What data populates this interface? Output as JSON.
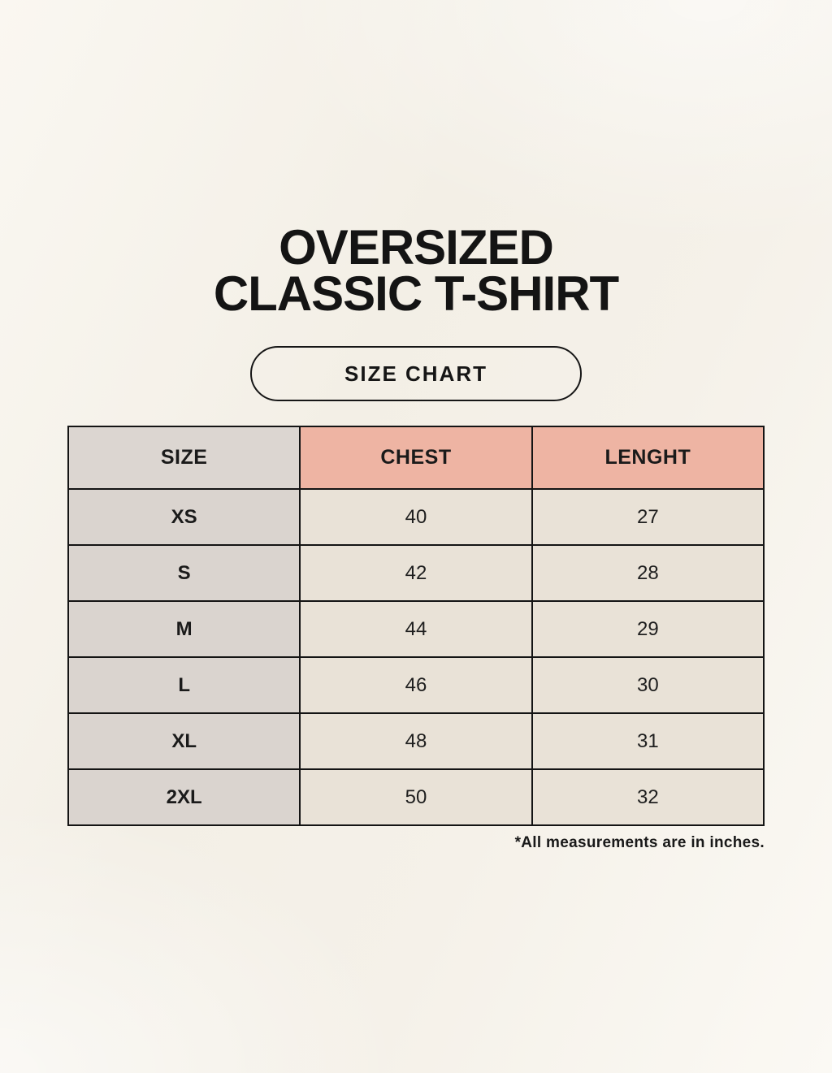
{
  "page": {
    "title_line1": "OVERSIZED",
    "title_line2": "CLASSIC T-SHIRT",
    "badge_label": "SIZE CHART",
    "footnote": "*All measurements are in inches."
  },
  "size_table": {
    "columns": [
      "SIZE",
      "CHEST",
      "LENGHT"
    ],
    "rows": [
      {
        "size": "XS",
        "chest": "40",
        "length": "27"
      },
      {
        "size": "S",
        "chest": "42",
        "length": "28"
      },
      {
        "size": "M",
        "chest": "44",
        "length": "29"
      },
      {
        "size": "L",
        "chest": "46",
        "length": "30"
      },
      {
        "size": "XL",
        "chest": "48",
        "length": "31"
      },
      {
        "size": "2XL",
        "chest": "50",
        "length": "32"
      }
    ],
    "units_note": "inches"
  },
  "colors": {
    "background": "#f5f1e9",
    "header_size_bg": "#dcd6d1",
    "header_measure_bg": "#eeb4a3",
    "row_label_bg": "#dad4cf",
    "row_value_bg": "#e9e2d7",
    "table_border": "#141414",
    "text": "#1a1a1a"
  }
}
